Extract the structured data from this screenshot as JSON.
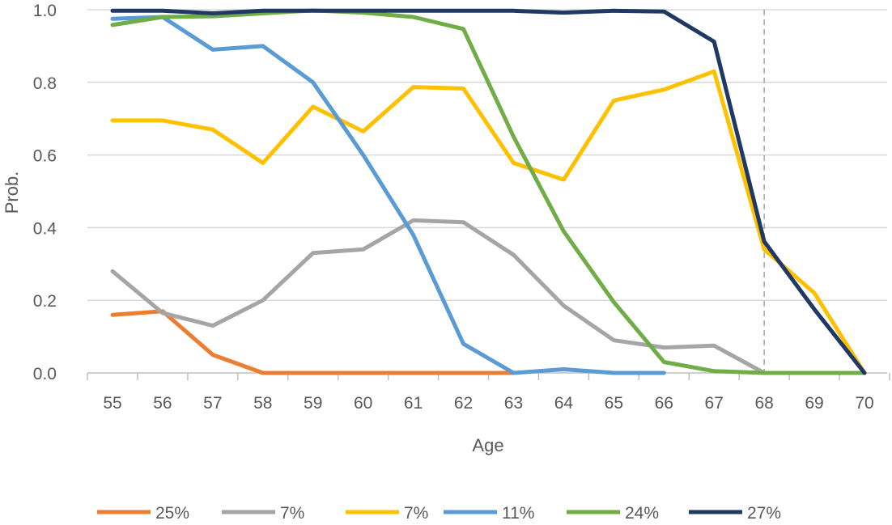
{
  "chart_data": {
    "type": "line",
    "title": "",
    "xlabel": "Age",
    "ylabel": "Prob.",
    "x": [
      55,
      56,
      57,
      58,
      59,
      60,
      61,
      62,
      63,
      64,
      65,
      66,
      67,
      68,
      69,
      70
    ],
    "xlim": [
      55,
      70
    ],
    "ylim": [
      0,
      1
    ],
    "yticks": [
      "0.0",
      "0.2",
      "0.4",
      "0.6",
      "0.8",
      "1.0"
    ],
    "grid": "horizontal",
    "legend_position": "bottom",
    "reference_line": {
      "x": 68,
      "style": "dashed"
    },
    "series": [
      {
        "name": "25%",
        "color": "#ED7D31",
        "values": [
          0.16,
          0.17,
          0.05,
          0.0,
          0.0,
          0.0,
          0.0,
          0.0,
          0.0,
          null,
          null,
          null,
          null,
          null,
          null,
          null
        ]
      },
      {
        "name": "7%",
        "color": "#A5A5A5",
        "values": [
          0.28,
          0.165,
          0.13,
          0.2,
          0.33,
          0.34,
          0.42,
          0.415,
          0.325,
          0.185,
          0.09,
          0.07,
          0.075,
          0.0,
          null,
          null
        ]
      },
      {
        "name": "7%",
        "color": "#FFC000",
        "values": [
          0.695,
          0.695,
          0.67,
          0.578,
          0.733,
          0.665,
          0.787,
          0.783,
          0.578,
          0.532,
          0.75,
          0.78,
          0.83,
          0.34,
          0.22,
          0.0
        ]
      },
      {
        "name": "11%",
        "color": "#5B9BD5",
        "values": [
          0.975,
          0.98,
          0.89,
          0.9,
          0.8,
          0.6,
          0.38,
          0.08,
          0.0,
          0.01,
          0.0,
          0.0,
          null,
          null,
          null,
          null
        ]
      },
      {
        "name": "24%",
        "color": "#70AD47",
        "values": [
          0.958,
          0.98,
          0.982,
          0.99,
          0.998,
          0.992,
          0.98,
          0.947,
          0.65,
          0.39,
          0.195,
          0.03,
          0.005,
          0.0,
          0.0,
          0.0
        ]
      },
      {
        "name": "27%",
        "color": "#203864",
        "values": [
          0.997,
          0.997,
          0.99,
          0.997,
          0.997,
          0.997,
          0.997,
          0.997,
          0.997,
          0.992,
          0.997,
          0.995,
          0.912,
          0.362,
          0.175,
          0.0
        ]
      }
    ]
  }
}
